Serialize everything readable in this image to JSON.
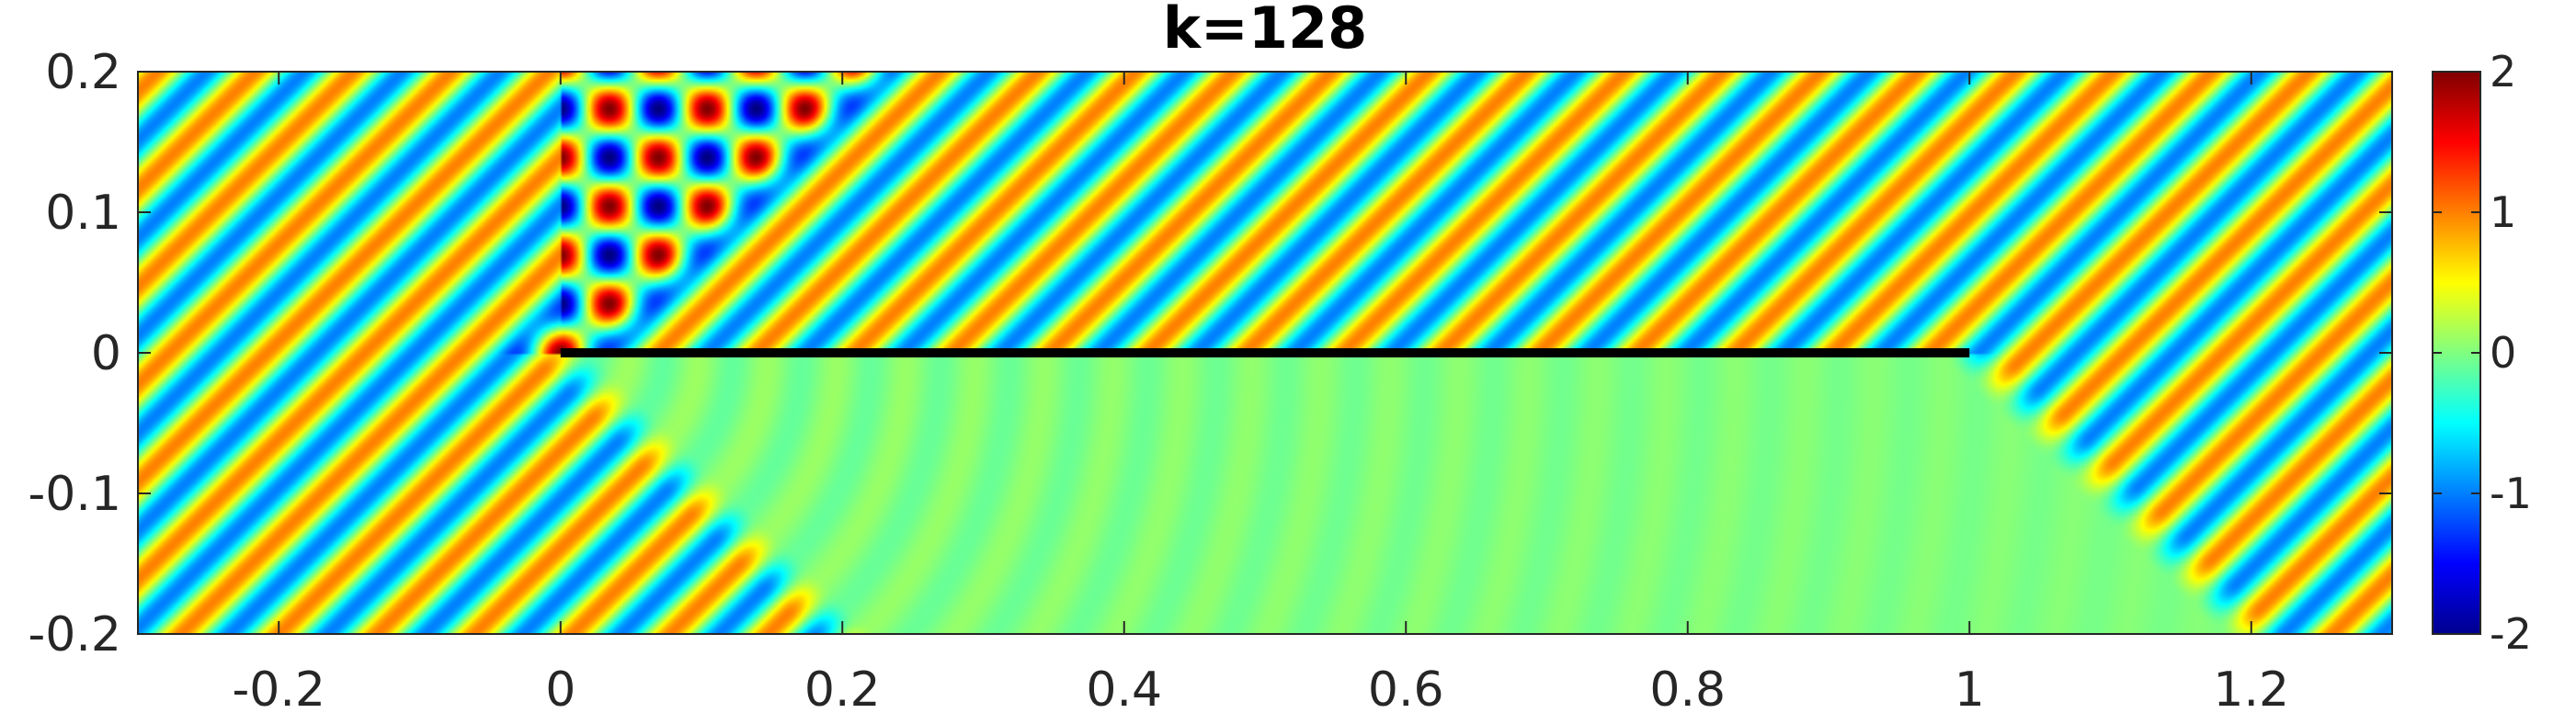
{
  "chart_data": {
    "type": "heatmap",
    "title": "k=128",
    "xlabel": "",
    "ylabel": "",
    "xlim": [
      -0.3,
      1.3
    ],
    "ylim": [
      -0.2,
      0.2
    ],
    "x_ticks": [
      -0.2,
      0,
      0.2,
      0.4,
      0.6,
      0.8,
      1,
      1.2
    ],
    "x_tick_labels": [
      "-0.2",
      "0",
      "0.2",
      "0.4",
      "0.6",
      "0.8",
      "1",
      "1.2"
    ],
    "y_ticks": [
      0.2,
      0.1,
      0,
      -0.1,
      -0.2
    ],
    "y_tick_labels": [
      "0.2",
      "0.1",
      "0",
      "-0.1",
      "-0.2"
    ],
    "colormap": "jet",
    "clim": [
      -2,
      2
    ],
    "colorbar_ticks": [
      2,
      1,
      0,
      -1,
      -2
    ],
    "colorbar_tick_labels": [
      "2",
      "1",
      "0",
      "-1",
      "-2"
    ],
    "wavenumber": 128,
    "incidence_angle_deg": 45,
    "screen": {
      "x_start": 0,
      "x_end": 1,
      "y": 0,
      "color": "#000000"
    },
    "grid": false,
    "legend": "none"
  }
}
